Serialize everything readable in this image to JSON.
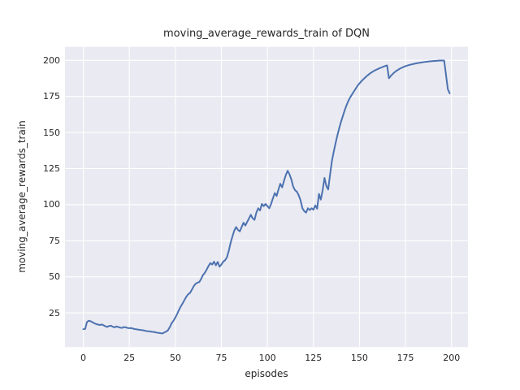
{
  "chart_data": {
    "type": "line",
    "title": "moving_average_rewards_train of DQN",
    "xlabel": "episodes",
    "ylabel": "moving_average_rewards_train",
    "x_ticks": [
      0,
      25,
      50,
      75,
      100,
      125,
      150,
      175,
      200
    ],
    "y_ticks": [
      25,
      50,
      75,
      100,
      125,
      150,
      175,
      200
    ],
    "xlim": [
      -9.95,
      208.95
    ],
    "ylim": [
      1.3,
      209.4
    ],
    "grid": true,
    "legend_position": "none",
    "colors": {
      "line": "#4C72B0",
      "axes_background": "#EAEAF2",
      "gridline": "#FFFFFF",
      "figure_background": "#FFFFFF",
      "text": "#262626"
    },
    "series": [
      {
        "name": "moving_average_rewards_train",
        "points": [
          [
            0,
            13.7
          ],
          [
            1,
            13.9
          ],
          [
            2,
            18.7
          ],
          [
            3,
            19.6
          ],
          [
            4,
            19.2
          ],
          [
            5,
            18.5
          ],
          [
            6,
            17.8
          ],
          [
            7,
            17.3
          ],
          [
            8,
            16.9
          ],
          [
            9,
            16.6
          ],
          [
            10,
            17.0
          ],
          [
            11,
            16.4
          ],
          [
            12,
            15.7
          ],
          [
            13,
            15.3
          ],
          [
            14,
            15.9
          ],
          [
            15,
            16.1
          ],
          [
            16,
            15.4
          ],
          [
            17,
            15.0
          ],
          [
            18,
            15.6
          ],
          [
            19,
            15.2
          ],
          [
            20,
            14.8
          ],
          [
            21,
            14.6
          ],
          [
            22,
            15.2
          ],
          [
            23,
            15.0
          ],
          [
            24,
            14.6
          ],
          [
            25,
            14.4
          ],
          [
            26,
            14.5
          ],
          [
            27,
            14.1
          ],
          [
            28,
            13.8
          ],
          [
            29,
            13.6
          ],
          [
            30,
            13.4
          ],
          [
            31,
            13.2
          ],
          [
            32,
            13.0
          ],
          [
            33,
            12.8
          ],
          [
            34,
            12.5
          ],
          [
            35,
            12.3
          ],
          [
            36,
            12.2
          ],
          [
            37,
            12.0
          ],
          [
            38,
            11.8
          ],
          [
            39,
            11.6
          ],
          [
            40,
            11.3
          ],
          [
            41,
            11.1
          ],
          [
            42,
            10.9
          ],
          [
            43,
            10.8
          ],
          [
            44,
            11.4
          ],
          [
            45,
            12.1
          ],
          [
            46,
            13.0
          ],
          [
            47,
            15.2
          ],
          [
            48,
            17.9
          ],
          [
            49,
            19.6
          ],
          [
            50,
            21.8
          ],
          [
            51,
            24.3
          ],
          [
            52,
            27.2
          ],
          [
            53,
            29.6
          ],
          [
            54,
            31.7
          ],
          [
            55,
            34.1
          ],
          [
            56,
            36.3
          ],
          [
            57,
            38.0
          ],
          [
            58,
            38.9
          ],
          [
            59,
            41.2
          ],
          [
            60,
            43.6
          ],
          [
            61,
            45.2
          ],
          [
            62,
            45.9
          ],
          [
            63,
            46.4
          ],
          [
            64,
            48.6
          ],
          [
            65,
            51.2
          ],
          [
            66,
            52.8
          ],
          [
            67,
            55.0
          ],
          [
            68,
            57.5
          ],
          [
            69,
            59.5
          ],
          [
            70,
            58.5
          ],
          [
            71,
            60.5
          ],
          [
            72,
            58.0
          ],
          [
            73,
            60.3
          ],
          [
            74,
            57.0
          ],
          [
            75,
            58.5
          ],
          [
            76,
            60.5
          ],
          [
            77,
            61.5
          ],
          [
            78,
            63.5
          ],
          [
            79,
            68.0
          ],
          [
            80,
            73.5
          ],
          [
            81,
            78.0
          ],
          [
            82,
            82.0
          ],
          [
            83,
            84.5
          ],
          [
            84,
            82.5
          ],
          [
            85,
            81.5
          ],
          [
            86,
            84.5
          ],
          [
            87,
            87.5
          ],
          [
            88,
            85.5
          ],
          [
            89,
            88.0
          ],
          [
            90,
            90.5
          ],
          [
            91,
            93.0
          ],
          [
            92,
            90.5
          ],
          [
            93,
            89.5
          ],
          [
            94,
            94.5
          ],
          [
            95,
            97.5
          ],
          [
            96,
            96.0
          ],
          [
            97,
            100.5
          ],
          [
            98,
            99.0
          ],
          [
            99,
            100.5
          ],
          [
            100,
            99.0
          ],
          [
            101,
            97.5
          ],
          [
            102,
            100.5
          ],
          [
            103,
            104.5
          ],
          [
            104,
            108.0
          ],
          [
            105,
            106.0
          ],
          [
            106,
            110.5
          ],
          [
            107,
            114.5
          ],
          [
            108,
            112.0
          ],
          [
            109,
            116.5
          ],
          [
            110,
            120.5
          ],
          [
            111,
            123.5
          ],
          [
            112,
            121.0
          ],
          [
            113,
            117.5
          ],
          [
            114,
            112.5
          ],
          [
            115,
            110.0
          ],
          [
            116,
            109.0
          ],
          [
            117,
            106.5
          ],
          [
            118,
            103.0
          ],
          [
            119,
            97.5
          ],
          [
            120,
            95.5
          ],
          [
            121,
            94.5
          ],
          [
            122,
            97.5
          ],
          [
            123,
            96.3
          ],
          [
            124,
            97.5
          ],
          [
            125,
            96.5
          ],
          [
            126,
            99.5
          ],
          [
            127,
            97.2
          ],
          [
            128,
            107.5
          ],
          [
            129,
            103.5
          ],
          [
            130,
            110.0
          ],
          [
            131,
            118.5
          ],
          [
            132,
            113.0
          ],
          [
            133,
            110.5
          ],
          [
            134,
            120.5
          ],
          [
            135,
            130.0
          ],
          [
            136,
            136.5
          ],
          [
            137,
            142.5
          ],
          [
            138,
            148.0
          ],
          [
            139,
            153.0
          ],
          [
            140,
            157.5
          ],
          [
            141,
            161.5
          ],
          [
            142,
            165.5
          ],
          [
            143,
            169.0
          ],
          [
            144,
            172.0
          ],
          [
            145,
            174.5
          ],
          [
            146,
            176.5
          ],
          [
            147,
            178.5
          ],
          [
            148,
            180.5
          ],
          [
            149,
            182.5
          ],
          [
            150,
            184.0
          ],
          [
            151,
            185.5
          ],
          [
            152,
            186.8
          ],
          [
            153,
            188.0
          ],
          [
            154,
            189.2
          ],
          [
            155,
            190.2
          ],
          [
            156,
            191.2
          ],
          [
            157,
            192.0
          ],
          [
            158,
            192.8
          ],
          [
            159,
            193.4
          ],
          [
            160,
            194.0
          ],
          [
            161,
            194.6
          ],
          [
            162,
            195.1
          ],
          [
            163,
            195.6
          ],
          [
            164,
            196.1
          ],
          [
            165,
            196.5
          ],
          [
            166,
            187.6
          ],
          [
            167,
            189.2
          ],
          [
            168,
            190.5
          ],
          [
            169,
            191.7
          ],
          [
            170,
            192.7
          ],
          [
            171,
            193.5
          ],
          [
            172,
            194.3
          ],
          [
            173,
            194.9
          ],
          [
            174,
            195.5
          ],
          [
            175,
            196.0
          ],
          [
            176,
            196.4
          ],
          [
            177,
            196.8
          ],
          [
            178,
            197.1
          ],
          [
            179,
            197.4
          ],
          [
            180,
            197.7
          ],
          [
            181,
            198.0
          ],
          [
            182,
            198.2
          ],
          [
            183,
            198.4
          ],
          [
            184,
            198.6
          ],
          [
            185,
            198.8
          ],
          [
            186,
            199.0
          ],
          [
            187,
            199.1
          ],
          [
            188,
            199.3
          ],
          [
            189,
            199.4
          ],
          [
            190,
            199.5
          ],
          [
            191,
            199.6
          ],
          [
            192,
            199.7
          ],
          [
            193,
            199.8
          ],
          [
            194,
            199.9
          ],
          [
            195,
            199.9
          ],
          [
            196,
            199.8
          ],
          [
            197,
            190.0
          ],
          [
            198,
            180.0
          ],
          [
            199,
            177.2
          ]
        ]
      }
    ]
  }
}
